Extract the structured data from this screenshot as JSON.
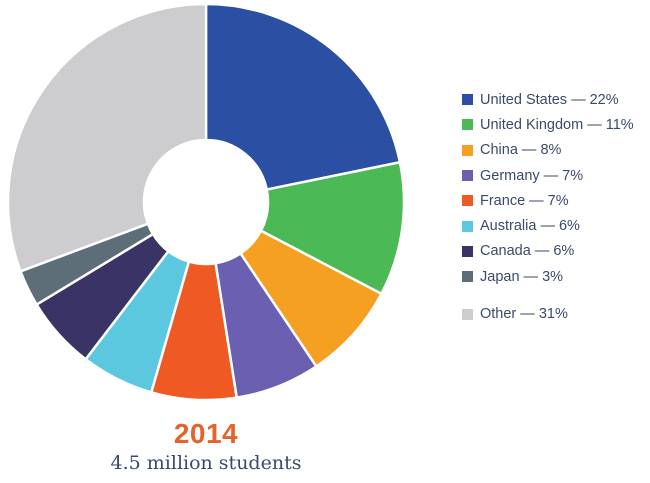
{
  "chart_data": {
    "type": "pie",
    "donut": true,
    "title": "2014",
    "subtitle": "4.5 million students",
    "slices": [
      {
        "label": "United States — 22%",
        "name": "United States",
        "value": 22,
        "color": "#2a4fa3"
      },
      {
        "label": "United Kingdom — 11%",
        "name": "United Kingdom",
        "value": 11,
        "color": "#4cb957"
      },
      {
        "label": "China — 8%",
        "name": "China",
        "value": 8,
        "color": "#f5a020"
      },
      {
        "label": "Germany — 7%",
        "name": "Germany",
        "value": 7,
        "color": "#6a5fb0"
      },
      {
        "label": "France — 7%",
        "name": "France",
        "value": 7,
        "color": "#ef5a24"
      },
      {
        "label": "Australia — 6%",
        "name": "Australia",
        "value": 6,
        "color": "#5bc8e0"
      },
      {
        "label": "Canada — 6%",
        "name": "Canada",
        "value": 6,
        "color": "#3a3466"
      },
      {
        "label": "Japan — 3%",
        "name": "Japan",
        "value": 3,
        "color": "#5d6e78"
      },
      {
        "label": "Other — 31%",
        "name": "Other",
        "value": 31,
        "color": "#cdcdcf"
      }
    ],
    "legend_position": "right"
  }
}
